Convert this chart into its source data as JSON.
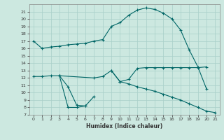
{
  "xlabel": "Humidex (Indice chaleur)",
  "background_color": "#cce8e0",
  "grid_color": "#a8cfc8",
  "line_color": "#006666",
  "xlim": [
    -0.5,
    21.5
  ],
  "ylim": [
    7,
    22
  ],
  "xticks": [
    0,
    1,
    2,
    3,
    4,
    5,
    6,
    7,
    8,
    9,
    10,
    11,
    12,
    13,
    14,
    15,
    16,
    17,
    18,
    19,
    20,
    21
  ],
  "yticks": [
    7,
    8,
    9,
    10,
    11,
    12,
    13,
    14,
    15,
    16,
    17,
    18,
    19,
    20,
    21
  ],
  "curves": [
    {
      "x": [
        0,
        1,
        2,
        3,
        4,
        5,
        6,
        7,
        8,
        9,
        10,
        11,
        12,
        13,
        14,
        15,
        16,
        17,
        18,
        19,
        20
      ],
      "y": [
        17,
        16,
        16.2,
        16.3,
        16.5,
        16.6,
        16.7,
        17.0,
        17.2,
        19.0,
        19.5,
        20.5,
        21.2,
        21.5,
        21.3,
        20.8,
        20.0,
        18.5,
        15.8,
        13.5,
        10.5
      ]
    },
    {
      "x": [
        0,
        1,
        2,
        3,
        7,
        8,
        9,
        10,
        11,
        12,
        13,
        14,
        15,
        16,
        17,
        18,
        19,
        20
      ],
      "y": [
        12.2,
        12.2,
        12.3,
        12.3,
        12.0,
        12.2,
        13.0,
        11.5,
        11.8,
        13.3,
        13.4,
        13.4,
        13.4,
        13.4,
        13.4,
        13.4,
        13.4,
        13.5
      ]
    },
    {
      "x": [
        3,
        4,
        5,
        6,
        7
      ],
      "y": [
        12.3,
        10.8,
        8.3,
        8.2,
        9.5
      ]
    },
    {
      "x": [
        3,
        4,
        5,
        6
      ],
      "y": [
        12.3,
        8.0,
        8.0,
        8.2
      ]
    },
    {
      "x": [
        9,
        10,
        11,
        12,
        13,
        14,
        15,
        16,
        17,
        18,
        19,
        20,
        21
      ],
      "y": [
        13.0,
        11.5,
        11.2,
        10.8,
        10.5,
        10.2,
        9.8,
        9.4,
        9.0,
        8.5,
        8.0,
        7.5,
        7.3
      ]
    }
  ]
}
